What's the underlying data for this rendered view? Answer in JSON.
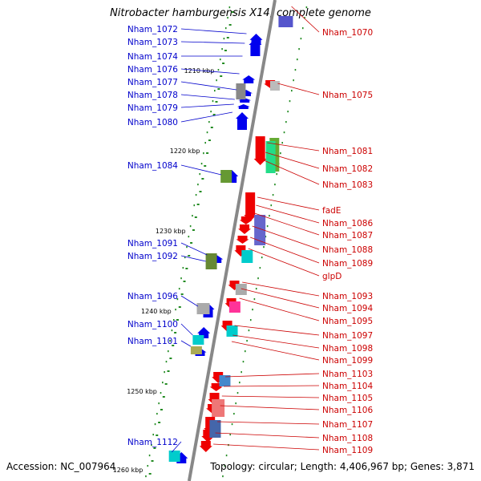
{
  "title": "Nitrobacter hamburgensis X14, complete genome",
  "accession": "Accession: NC_007964",
  "summary": "Topology: circular; Length: 4,406,967 bp; Genes: 3,871",
  "colors": {
    "left_label": "#0000cc",
    "right_label": "#cc0000",
    "backbone": "#888888",
    "tick": "#228b22"
  },
  "scale_labels": [
    "1210 kbp",
    "1220 kbp",
    "1230 kbp",
    "1240 kbp",
    "1250 kbp",
    "1260 kbp"
  ],
  "left_genes": [
    "Nham_1072",
    "Nham_1073",
    "Nham_1074",
    "Nham_1076",
    "Nham_1077",
    "Nham_1078",
    "Nham_1079",
    "Nham_1080",
    "Nham_1084",
    "Nham_1091",
    "Nham_1092",
    "Nham_1096",
    "Nham_1100",
    "Nham_1101",
    "Nham_1112"
  ],
  "right_genes": [
    "Nham_1070",
    "Nham_1075",
    "Nham_1081",
    "Nham_1082",
    "Nham_1083",
    "fadE",
    "Nham_1086",
    "Nham_1087",
    "Nham_1088",
    "Nham_1089",
    "glpD",
    "Nham_1093",
    "Nham_1094",
    "Nham_1095",
    "Nham_1097",
    "Nham_1098",
    "Nham_1099",
    "Nham_1103",
    "Nham_1104",
    "Nham_1105",
    "Nham_1106",
    "Nham_1107",
    "Nham_1108",
    "Nham_1109"
  ]
}
